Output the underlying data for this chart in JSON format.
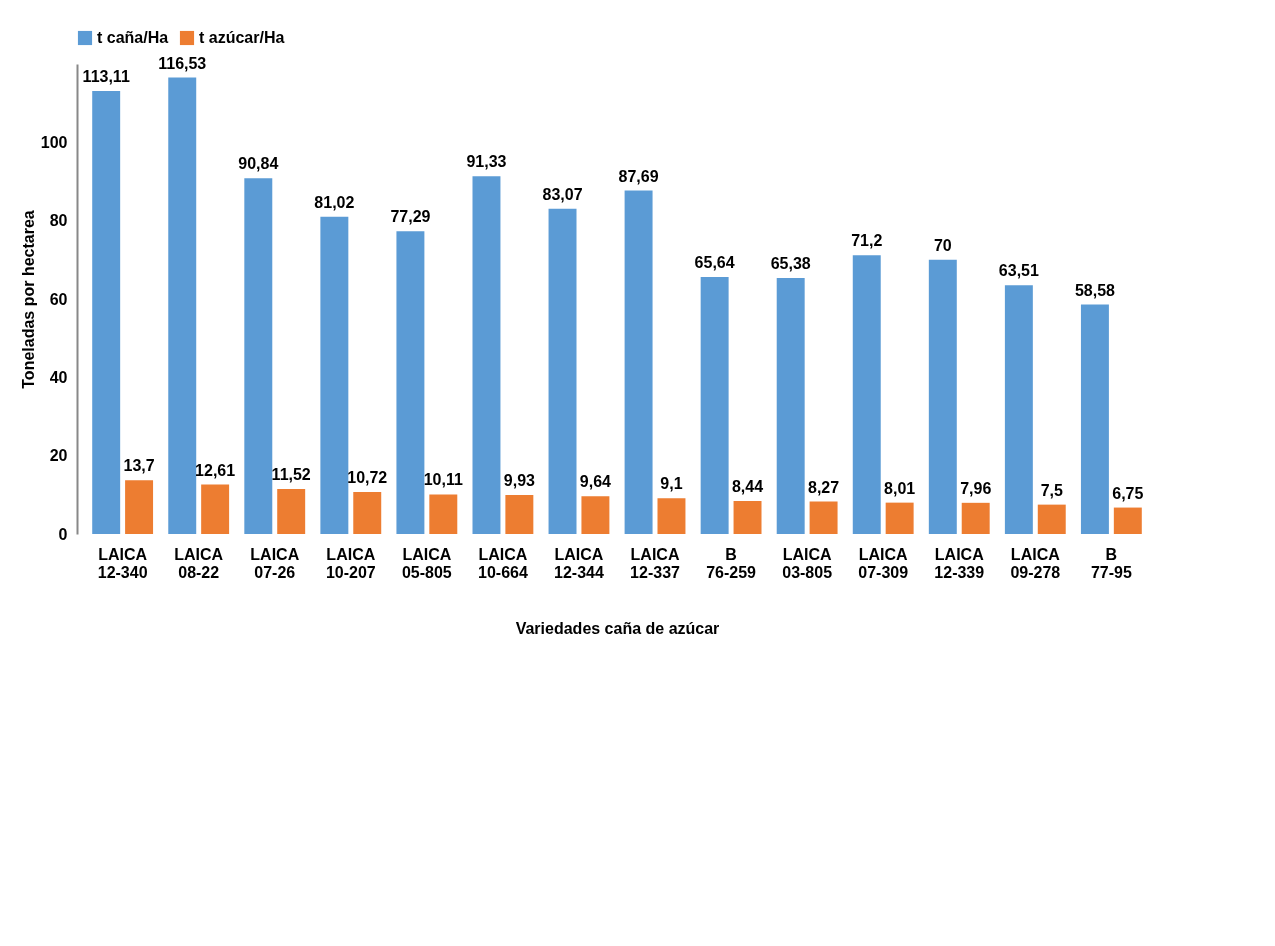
{
  "chart_data": {
    "type": "bar",
    "xlabel": "Variedades caña de azúcar",
    "ylabel": "Toneladas por hectarea",
    "categories": [
      "LAICA 12-340",
      "LAICA 08-22",
      "LAICA 07-26",
      "LAICA 10-207",
      "LAICA 05-805",
      "LAICA 10-664",
      "LAICA 12-344",
      "LAICA 12-337",
      "B 76-259",
      "LAICA 03-805",
      "LAICA 07-309",
      "LAICA 12-339",
      "LAICA 09-278",
      "B 77-95"
    ],
    "series": [
      {
        "name": "t caña/Ha",
        "color": "#5b9bd5",
        "values": [
          113.11,
          116.53,
          90.84,
          81.02,
          77.29,
          91.33,
          83.07,
          87.69,
          65.64,
          65.38,
          71.2,
          70,
          63.51,
          58.58
        ],
        "value_labels": [
          "113,11",
          "116,53",
          "90,84",
          "81,02",
          "77,29",
          "91,33",
          "83,07",
          "87,69",
          "65,64",
          "65,38",
          "71,2",
          "70",
          "63,51",
          "58,58"
        ]
      },
      {
        "name": "t azúcar/Ha",
        "color": "#ed7d31",
        "values": [
          13.7,
          12.61,
          11.52,
          10.72,
          10.11,
          9.93,
          9.64,
          9.1,
          8.44,
          8.27,
          8.01,
          7.96,
          7.5,
          6.75
        ],
        "value_labels": [
          "13,7",
          "12,61",
          "11,52",
          "10,72",
          "10,11",
          "9,93",
          "9,64",
          "9,1",
          "8,44",
          "8,27",
          "8,01",
          "7,96",
          "7,5",
          "6,75"
        ]
      }
    ],
    "ylim": [
      0,
      120
    ],
    "yticks": [
      0,
      20,
      40,
      60,
      80,
      100
    ],
    "grid": false,
    "legend": "top"
  }
}
